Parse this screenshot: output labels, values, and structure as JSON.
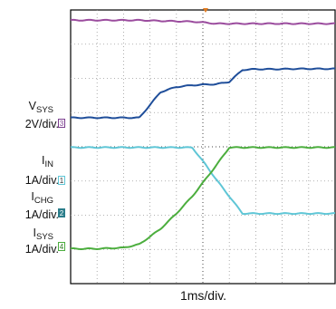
{
  "chart_data": {
    "type": "line",
    "xlabel": "1ms/div.",
    "grid": true,
    "divisions": {
      "x": 10,
      "y": 8
    },
    "x": [
      0,
      1,
      2,
      2.6,
      3.4,
      4,
      4.6,
      5.1,
      5.5,
      6,
      6.5,
      7,
      7.8,
      8.5,
      9,
      10
    ],
    "series": [
      {
        "channel": "top",
        "color": "#9b4c9e",
        "values": [
          7.7,
          7.7,
          7.7,
          7.7,
          7.68,
          7.67,
          7.66,
          7.63,
          7.6,
          7.6,
          7.6,
          7.6,
          7.6,
          7.6,
          7.6,
          7.6
        ]
      },
      {
        "channel": "3",
        "color": "#1f4e9a",
        "values": [
          4.85,
          4.85,
          4.85,
          4.85,
          5.6,
          5.75,
          5.8,
          5.82,
          5.83,
          5.9,
          6.25,
          6.27,
          6.27,
          6.28,
          6.28,
          6.28
        ]
      },
      {
        "channel": "1",
        "color": "#5fc6d6",
        "values": [
          3.98,
          3.98,
          3.98,
          3.98,
          3.98,
          3.98,
          3.98,
          3.48,
          3.05,
          2.55,
          2.05,
          2.05,
          2.05,
          2.05,
          2.05,
          2.05
        ]
      },
      {
        "channel": "2",
        "color": "#4cae3e",
        "values": [
          1.02,
          1.02,
          1.05,
          1.15,
          1.6,
          2.05,
          2.55,
          3.05,
          3.45,
          3.98,
          3.98,
          3.98,
          3.98,
          3.98,
          3.98,
          3.98
        ]
      }
    ]
  },
  "labels": {
    "vsys_main": "V",
    "vsys_sub": "SYS",
    "vsys_scale": "2V/div.",
    "vsys_badge": "3",
    "iin_main": "I",
    "iin_sub": "IN",
    "iin_scale": "1A/div.",
    "iin_badge": "1",
    "ichg_main": "I",
    "ichg_sub": "CHG",
    "ichg_scale": "1A/div.",
    "ichg_badge": "2",
    "isys_main": "I",
    "isys_sub": "SYS",
    "isys_scale": "1A/div.",
    "isys_badge": "4"
  }
}
